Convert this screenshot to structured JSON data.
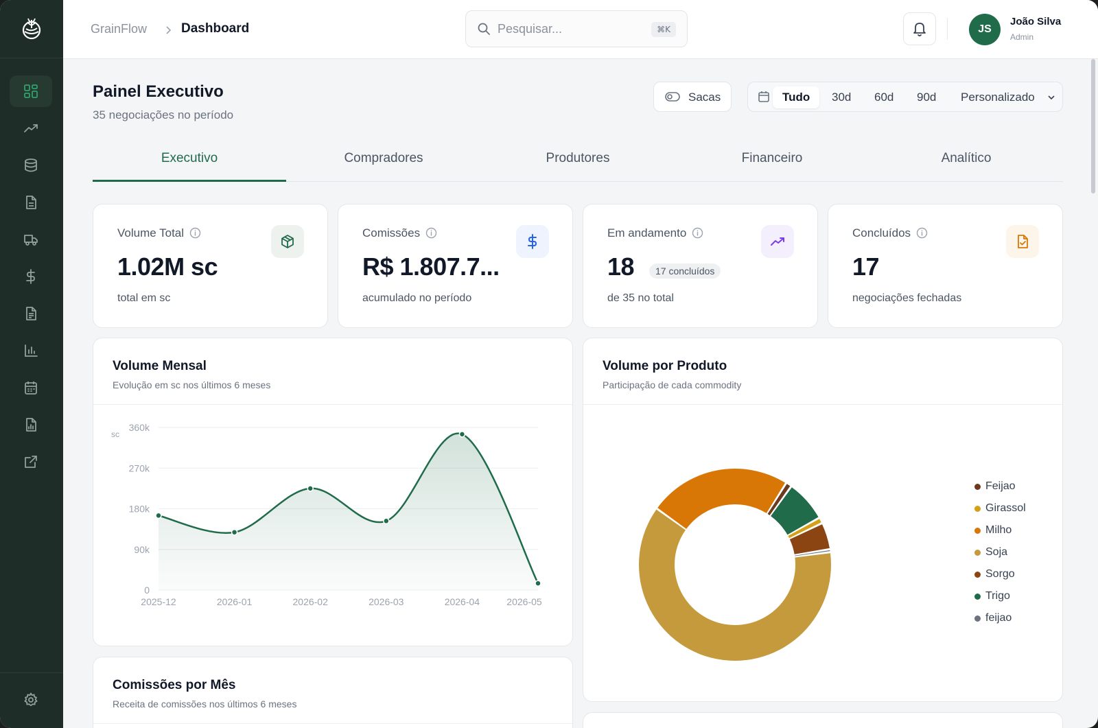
{
  "brand": {
    "name": "GrainFlow"
  },
  "breadcrumb": {
    "root": "GrainFlow",
    "current": "Dashboard"
  },
  "search": {
    "placeholder": "Pesquisar...",
    "shortcut": "⌘K"
  },
  "user": {
    "initials": "JS",
    "name": "João Silva",
    "role": "Admin"
  },
  "sidebar": {
    "items": [
      {
        "icon": "grid-icon",
        "active": true
      },
      {
        "icon": "trending-up-icon"
      },
      {
        "icon": "database-icon"
      },
      {
        "icon": "document-icon"
      },
      {
        "icon": "truck-icon"
      },
      {
        "icon": "dollar-icon"
      },
      {
        "icon": "file-text-icon"
      },
      {
        "icon": "bar-chart-icon"
      },
      {
        "icon": "calendar-icon"
      },
      {
        "icon": "report-icon"
      },
      {
        "icon": "external-link-icon"
      }
    ],
    "footer_icon": "gear-icon"
  },
  "page": {
    "title": "Painel Executivo",
    "subtitle": "35 negociações no período"
  },
  "unit_toggle": {
    "label": "Sacas"
  },
  "range": {
    "options": [
      "Tudo",
      "30d",
      "60d",
      "90d"
    ],
    "selected": "Tudo",
    "custom_label": "Personalizado"
  },
  "tabs": [
    "Executivo",
    "Compradores",
    "Produtores",
    "Financeiro",
    "Analítico"
  ],
  "active_tab": "Executivo",
  "stats": [
    {
      "label": "Volume Total",
      "value": "1.02M sc",
      "footer": "total em sc",
      "icon": "box-icon",
      "accent": "#1f6b4a"
    },
    {
      "label": "Comissões",
      "value": "R$ 1.807.7...",
      "footer": "acumulado no período",
      "icon": "dollar-icon",
      "accent": "#2563eb"
    },
    {
      "label": "Em andamento",
      "value": "18",
      "badge": "17 concluídos",
      "footer": "de 35 no total",
      "icon": "trending-up-icon",
      "accent": "#7c3aed"
    },
    {
      "label": "Concluídos",
      "value": "17",
      "footer": "negociações fechadas",
      "icon": "file-check-icon",
      "accent": "#d97706"
    }
  ],
  "volume_chart": {
    "title": "Volume Mensal",
    "subtitle": "Evolução em sc nos últimos 6 meses"
  },
  "product_chart": {
    "title": "Volume por Produto",
    "subtitle": "Participação de cada commodity"
  },
  "commission_chart": {
    "title": "Comissões por Mês",
    "subtitle": "Receita de comissões nos últimos 6 meses"
  },
  "chart_data": [
    {
      "type": "area",
      "title": "Volume Mensal",
      "ylabel": "sc",
      "x": [
        "2025-12",
        "2026-01",
        "2026-02",
        "2026-03",
        "2026-04",
        "2026-05"
      ],
      "values": [
        165000,
        128000,
        225000,
        153000,
        345000,
        15000
      ],
      "yticks": [
        "0",
        "90k",
        "180k",
        "270k",
        "360k"
      ],
      "ylim": [
        0,
        360000
      ],
      "color": "#1f6b4a",
      "grid": true
    },
    {
      "type": "pie",
      "title": "Volume por Produto",
      "legend": "right",
      "categories": [
        "Feijao",
        "Girassol",
        "Milho",
        "Soja",
        "Sorgo",
        "Trigo",
        "feijao"
      ],
      "values": [
        1.0,
        1.0,
        24.0,
        62.0,
        4.5,
        7.0,
        0.5
      ],
      "colors": [
        "#6b3a1f",
        "#d4a017",
        "#d97706",
        "#c49a3c",
        "#8b4513",
        "#1f6b4a",
        "#6b7280"
      ]
    }
  ]
}
